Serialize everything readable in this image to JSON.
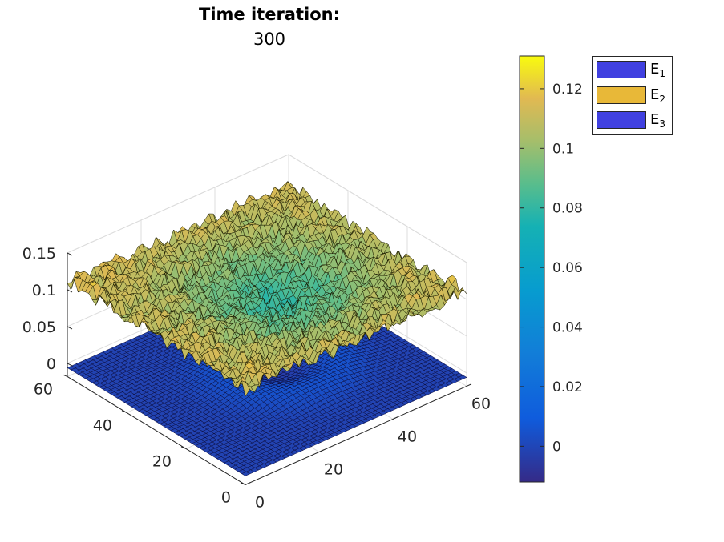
{
  "title": "Time iteration:",
  "subtitle": "300",
  "colorbar": {
    "ticks": [
      "0.12",
      "0.1",
      "0.08",
      "0.06",
      "0.04",
      "0.02",
      "0"
    ],
    "range": [
      -0.012,
      0.131
    ],
    "colormap": "parula"
  },
  "legend": {
    "items": [
      {
        "base": "E",
        "sub": "1",
        "color": "#4040e0"
      },
      {
        "base": "E",
        "sub": "2",
        "color": "#e8b838"
      },
      {
        "base": "E",
        "sub": "3",
        "color": "#4040e0"
      }
    ]
  },
  "chart_data": {
    "type": "surface3d",
    "title": "Time iteration:",
    "subtitle": "300",
    "x_ticks": [
      "0",
      "20",
      "40",
      "60"
    ],
    "y_ticks": [
      "0",
      "20",
      "40",
      "60"
    ],
    "z_ticks": [
      "0",
      "0.05",
      "0.1",
      "0.15"
    ],
    "xlim": [
      0,
      60
    ],
    "ylim": [
      0,
      60
    ],
    "zlim": [
      0,
      0.15
    ],
    "grid": true,
    "grid_size": 50,
    "series": [
      {
        "name": "E1",
        "surface": "upper, noisy",
        "z_edge": 0.11,
        "z_center": 0.085,
        "noise": 0.012,
        "color_scale": "parula"
      },
      {
        "name": "E2",
        "surface": "lower, smooth",
        "z_min": -0.005,
        "z_max": 0.01,
        "color": "#4040e0"
      }
    ],
    "legend_position": "top-right"
  }
}
